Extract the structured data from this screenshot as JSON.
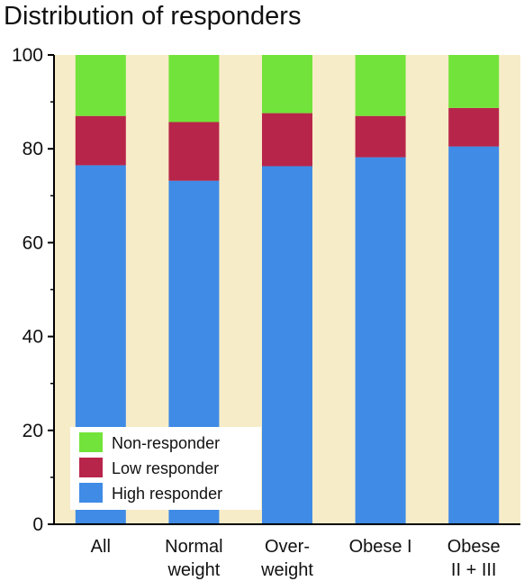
{
  "chart_data": {
    "type": "bar",
    "stacked": true,
    "title": "Distribution of responders",
    "xlabel": "",
    "ylabel": "",
    "ylim": [
      0,
      100
    ],
    "yticks": [
      0,
      20,
      40,
      60,
      80,
      100
    ],
    "categories": [
      [
        "All"
      ],
      [
        "Normal",
        "weight"
      ],
      [
        "Over-",
        "weight"
      ],
      [
        "Obese I"
      ],
      [
        "Obese",
        "II + III"
      ]
    ],
    "series": [
      {
        "name": "High responder",
        "color": "#3f8be6",
        "values": [
          76.5,
          73.2,
          76.3,
          78.2,
          80.5
        ]
      },
      {
        "name": "Low responder",
        "color": "#b8254a",
        "values": [
          10.5,
          12.5,
          11.3,
          8.8,
          8.2
        ]
      },
      {
        "name": "Non-responder",
        "color": "#72e33a",
        "values": [
          13.0,
          14.3,
          12.4,
          13.0,
          11.3
        ]
      }
    ],
    "legend_order": [
      "Non-responder",
      "Low responder",
      "High responder"
    ],
    "legend_position": "bottom-left",
    "background": "#f7ecc8",
    "grid": false
  }
}
